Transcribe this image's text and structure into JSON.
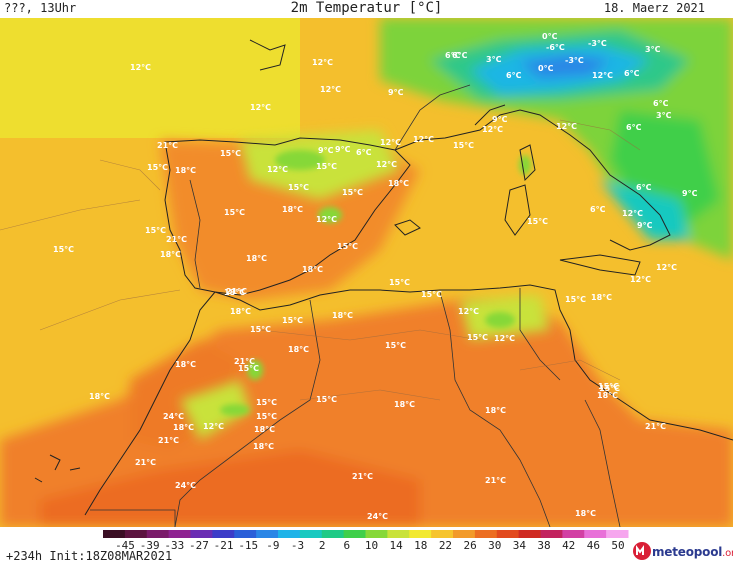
{
  "header": {
    "left_label": "???, 13Uhr",
    "title": "2m Temperatur [°C]",
    "date": "18. Maerz 2021"
  },
  "footer": {
    "run_info": "+234h  Init:18Z08MAR2021",
    "logo_main": "meteopool",
    "logo_suffix": ".org"
  },
  "colorbar": {
    "ticks": [
      "-45",
      "-39",
      "-33",
      "-27",
      "-21",
      "-15",
      "-9",
      "-3",
      "2",
      "6",
      "10",
      "14",
      "18",
      "22",
      "26",
      "30",
      "34",
      "38",
      "42",
      "46",
      "50"
    ],
    "colors": [
      "#3b0f25",
      "#5c1440",
      "#7a1b6a",
      "#8e2391",
      "#6a2db3",
      "#3c3cc8",
      "#2a5fd8",
      "#2a86e6",
      "#1fb3e8",
      "#19c9c0",
      "#1fca86",
      "#3fcf4a",
      "#86d838",
      "#c9e23a",
      "#f2e930",
      "#f6c42d",
      "#f29a2a",
      "#ec6e22",
      "#e24a1e",
      "#cf2a22",
      "#c2235f",
      "#d240a4",
      "#e870d8",
      "#f6a6ee"
    ]
  },
  "map": {
    "labels": [
      "12°C",
      "12°C",
      "12°C",
      "12°C",
      "9°C",
      "6°C",
      "0°C",
      "-6°C",
      "-3°C",
      "3°C",
      "3°C",
      "-3°C",
      "6°C",
      "6°C",
      "6°C",
      "0°C",
      "6°C",
      "12°C",
      "9°C",
      "6°C",
      "3°C",
      "12°C",
      "21°C",
      "15°C",
      "15°C",
      "18°C",
      "12°C",
      "15°C",
      "15°C",
      "9°C",
      "6°C",
      "12°C",
      "12°C",
      "15°C",
      "15°C",
      "9°C",
      "12°C",
      "12°C",
      "15°C",
      "18°C",
      "18°C",
      "15°C",
      "12°C",
      "18°C",
      "15°C",
      "21°C",
      "18°C",
      "6°C",
      "6°C",
      "9°C",
      "12°C",
      "9°C",
      "15°C",
      "15°C",
      "15°C",
      "18°C",
      "18°C",
      "15°C",
      "12°C",
      "12°C",
      "21°C",
      "15°C",
      "18°C",
      "15°C",
      "18°C",
      "15°C",
      "15°C",
      "12°C",
      "12°C",
      "15°C",
      "18°C",
      "21°C",
      "15°C",
      "18°C",
      "15°C",
      "18°C",
      "15°C",
      "18°C",
      "18°C",
      "18°C",
      "24°C",
      "15°C",
      "18°C",
      "12°C",
      "21°C",
      "18°C",
      "21°C",
      "21°C",
      "24°C",
      "21°C",
      "21°C",
      "24°C",
      "18°C",
      "15°C",
      "18°C",
      "15°C",
      "18°C"
    ]
  }
}
